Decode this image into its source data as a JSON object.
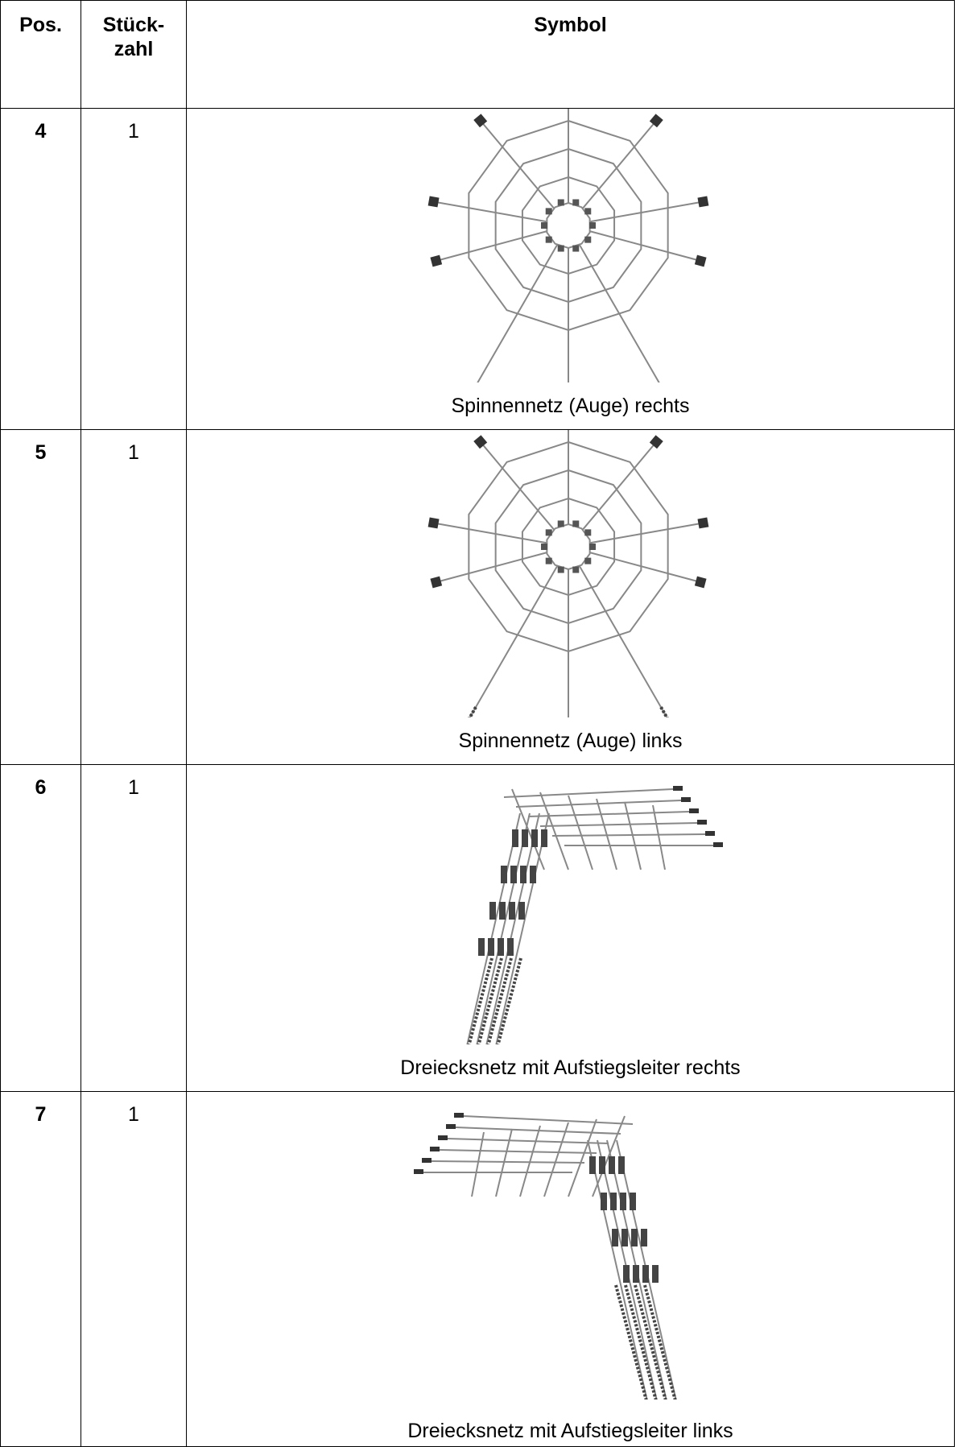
{
  "header": {
    "pos": "Pos.",
    "count": [
      "Stück-",
      "zahl"
    ],
    "symbol": "Symbol"
  },
  "rows": [
    {
      "pos": "4",
      "count": "1",
      "caption": "Spinnennetz (Auge) rechts"
    },
    {
      "pos": "5",
      "count": "1",
      "caption": "Spinnennetz (Auge) links"
    },
    {
      "pos": "6",
      "count": "1",
      "caption": "Dreiecksnetz mit Aufstiegsleiter rechts"
    },
    {
      "pos": "7",
      "count": "1",
      "caption": "Dreiecksnetz mit Aufstiegsleiter links"
    }
  ]
}
